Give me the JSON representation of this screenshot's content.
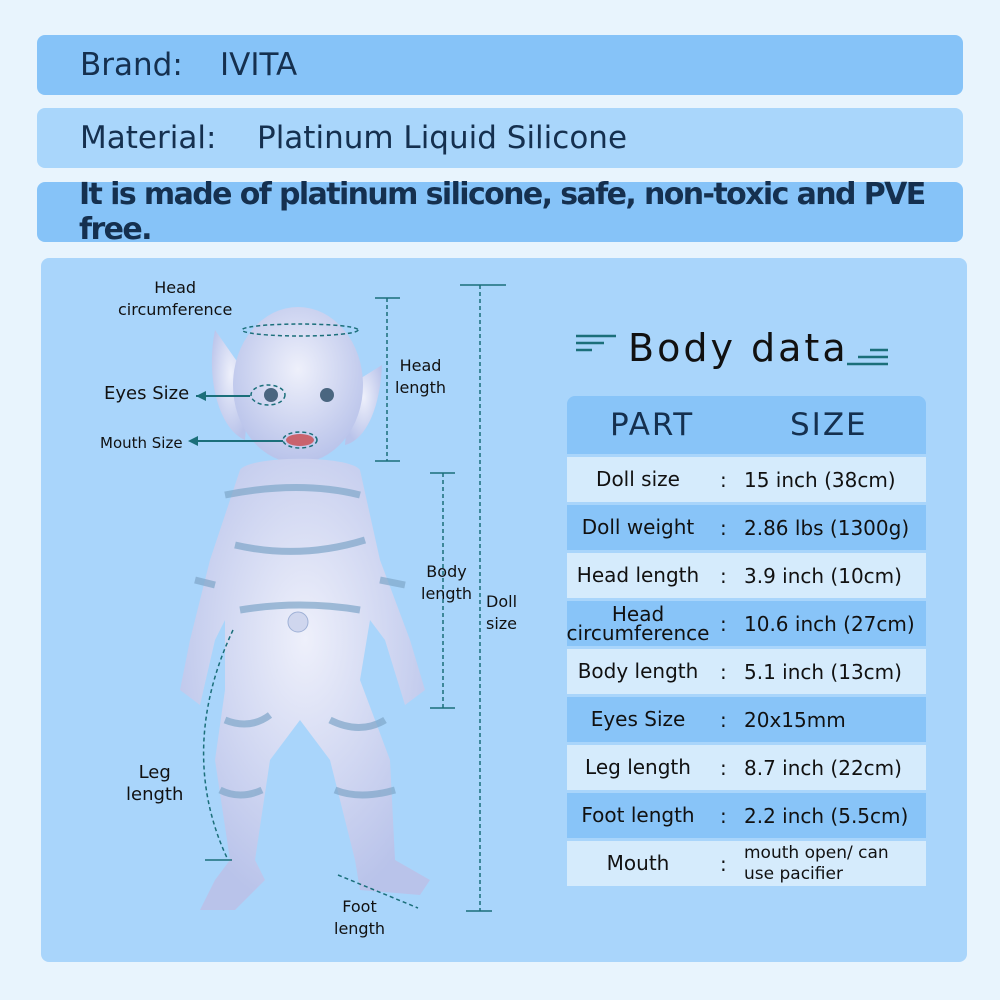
{
  "brand": {
    "label": "Brand:",
    "value": "IVITA"
  },
  "material": {
    "label": "Material:",
    "value": "Platinum Liquid Silicone"
  },
  "tagline": "It is made of platinum silicone, safe, non-toxic and PVE free.",
  "annotations": {
    "head_circumference": [
      "Head",
      "circumference"
    ],
    "eyes_size": "Eyes Size",
    "mouth_size": "Mouth Size",
    "head_length": [
      "Head",
      "length"
    ],
    "body_length": [
      "Body",
      "length"
    ],
    "doll_size": [
      "Doll",
      "size"
    ],
    "leg_length": [
      "Leg",
      "length"
    ],
    "foot_length": [
      "Foot",
      "length"
    ]
  },
  "body_data": {
    "title": "Body data",
    "headers": [
      "PART",
      "SIZE"
    ],
    "rows": [
      {
        "part": "Doll size",
        "size": "15 inch (38cm)"
      },
      {
        "part": "Doll weight",
        "size": "2.86 lbs (1300g)"
      },
      {
        "part": "Head length",
        "size": "3.9 inch (10cm)"
      },
      {
        "part": "Head circumference",
        "size": "10.6 inch (27cm)"
      },
      {
        "part": "Body length",
        "size": "5.1 inch (13cm)"
      },
      {
        "part": "Eyes Size",
        "size": "20x15mm"
      },
      {
        "part": "Leg length",
        "size": "8.7 inch (22cm)"
      },
      {
        "part": "Foot length",
        "size": "2.2 inch (5.5cm)"
      },
      {
        "part": "Mouth",
        "size": "mouth open/ can use pacifier"
      }
    ],
    "colon": ":"
  },
  "colors": {
    "banner_dark": "#86c3f8",
    "banner_light": "#a9d6fb",
    "panel": "#a9d5fb",
    "row_light": "#d5ebfc",
    "row_dark": "#88c4f8",
    "text": "#15304f",
    "line": "#1b6f7a"
  }
}
